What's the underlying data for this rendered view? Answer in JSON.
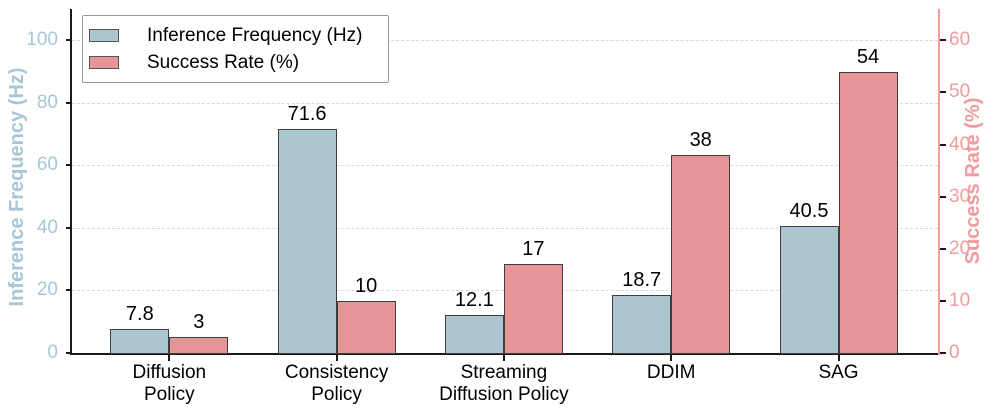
{
  "chart_data": {
    "type": "bar",
    "title": "",
    "categories": [
      "Diffusion\nPolicy",
      "Consistency\nPolicy",
      "Streaming\nDiffusion Policy",
      "DDIM",
      "SAG"
    ],
    "series": [
      {
        "name": "Inference Frequency (Hz)",
        "axis": "left",
        "color": "#abc5d1",
        "values": [
          7.8,
          71.6,
          12.1,
          18.7,
          40.5
        ],
        "value_labels": [
          "7.8",
          "71.6",
          "12.1",
          "18.7",
          "40.5"
        ]
      },
      {
        "name": "Success Rate (%)",
        "axis": "right",
        "color": "#e59598",
        "values": [
          3,
          10,
          17,
          38,
          54
        ],
        "value_labels": [
          "3",
          "10",
          "17",
          "38",
          "54"
        ]
      }
    ],
    "axis_left": {
      "label": "Inference Frequency (Hz)",
      "color": "#a7c7d8",
      "ticks": [
        0,
        20,
        40,
        60,
        80,
        100
      ]
    },
    "axis_right": {
      "label": "Success Rate (%)",
      "color": "#f09b9e",
      "ticks": [
        0,
        10,
        20,
        30,
        40,
        50,
        60
      ]
    },
    "ylim_left": [
      0,
      110
    ],
    "ylim_right": [
      0,
      66
    ],
    "grid": {
      "on": true,
      "axis": "y",
      "style": "dashed",
      "color": "#d9d9d9"
    },
    "bar_edge_color": "#3d3d3d",
    "legend": {
      "position": "upper-left"
    }
  }
}
